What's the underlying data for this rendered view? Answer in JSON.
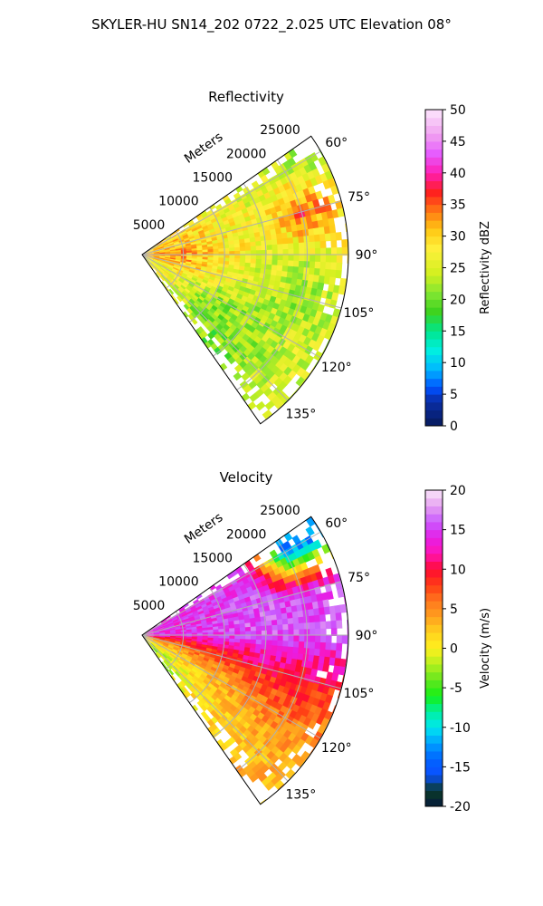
{
  "figure": {
    "title": "SKYLER-HU  SN14_202  0722_2.025 UTC Elevation 08°"
  },
  "chart_data": [
    {
      "type": "heatmap",
      "title": "Reflectivity",
      "projection": "polar-sector",
      "radial_label": "Meters",
      "radial_ticks": [
        5000,
        10000,
        15000,
        20000,
        25000
      ],
      "radial_range": [
        0,
        25000
      ],
      "angle_ticks": [
        "60°",
        "75°",
        "90°",
        "105°",
        "120°",
        "135°"
      ],
      "angle_tick_values": [
        60,
        75,
        90,
        105,
        120,
        135
      ],
      "angle_range": [
        55,
        145
      ],
      "grid": true,
      "colorbar": {
        "label": "Reflectivity dBZ",
        "range": [
          0,
          50
        ],
        "ticks": [
          0,
          5,
          10,
          15,
          20,
          25,
          30,
          35,
          40,
          45,
          50
        ],
        "placement": "right"
      },
      "field_summary": "Mostly 20–30 dBZ echo across the sector; red 30–40 dBZ streaks near the radar along 85–100°, and a red cell of about 35–40 dBZ at 15–22 km range near 65–75°.",
      "sample_grid": {
        "azimuth_deg": [
          60,
          75,
          90,
          105,
          120,
          135
        ],
        "range_m": [
          5000,
          10000,
          15000,
          20000,
          25000
        ],
        "values": [
          [
            30,
            27,
            25,
            24,
            22
          ],
          [
            31,
            28,
            27,
            36,
            30
          ],
          [
            33,
            29,
            26,
            25,
            27
          ],
          [
            31,
            27,
            24,
            22,
            24
          ],
          [
            27,
            22,
            22,
            24,
            25
          ],
          [
            26,
            21,
            20,
            24,
            25
          ]
        ]
      }
    },
    {
      "type": "heatmap",
      "title": "Velocity",
      "projection": "polar-sector",
      "radial_label": "Meters",
      "radial_ticks": [
        5000,
        10000,
        15000,
        20000,
        25000
      ],
      "radial_range": [
        0,
        25000
      ],
      "angle_ticks": [
        "60°",
        "75°",
        "90°",
        "105°",
        "120°",
        "135°"
      ],
      "angle_tick_values": [
        60,
        75,
        90,
        105,
        120,
        135
      ],
      "angle_range": [
        55,
        145
      ],
      "grid": true,
      "colorbar": {
        "label": "Velocity (m/s)",
        "range": [
          -20,
          20
        ],
        "ticks": [
          -20,
          -15,
          -10,
          -5,
          0,
          5,
          10,
          15,
          20
        ],
        "placement": "right"
      },
      "field_summary": "Positive 12–18 m/s (magenta/purple) north of about 92°, 8–11 m/s (red) band near 93–105°, 0–5 m/s (yellow/orange) south of 105°, and a -12 to -15 m/s (blue) patch at 18–25 km near 60–72°.",
      "sample_grid": {
        "azimuth_deg": [
          60,
          75,
          90,
          105,
          120,
          135
        ],
        "range_m": [
          5000,
          10000,
          15000,
          20000,
          25000
        ],
        "values": [
          [
            14,
            15,
            14,
            -13,
            -13
          ],
          [
            14,
            15,
            16,
            15,
            16
          ],
          [
            14,
            15,
            16,
            15,
            16
          ],
          [
            6,
            8,
            10,
            10,
            9
          ],
          [
            2,
            3,
            5,
            6,
            5
          ],
          [
            -2,
            1,
            2,
            3,
            3
          ]
        ]
      }
    }
  ]
}
